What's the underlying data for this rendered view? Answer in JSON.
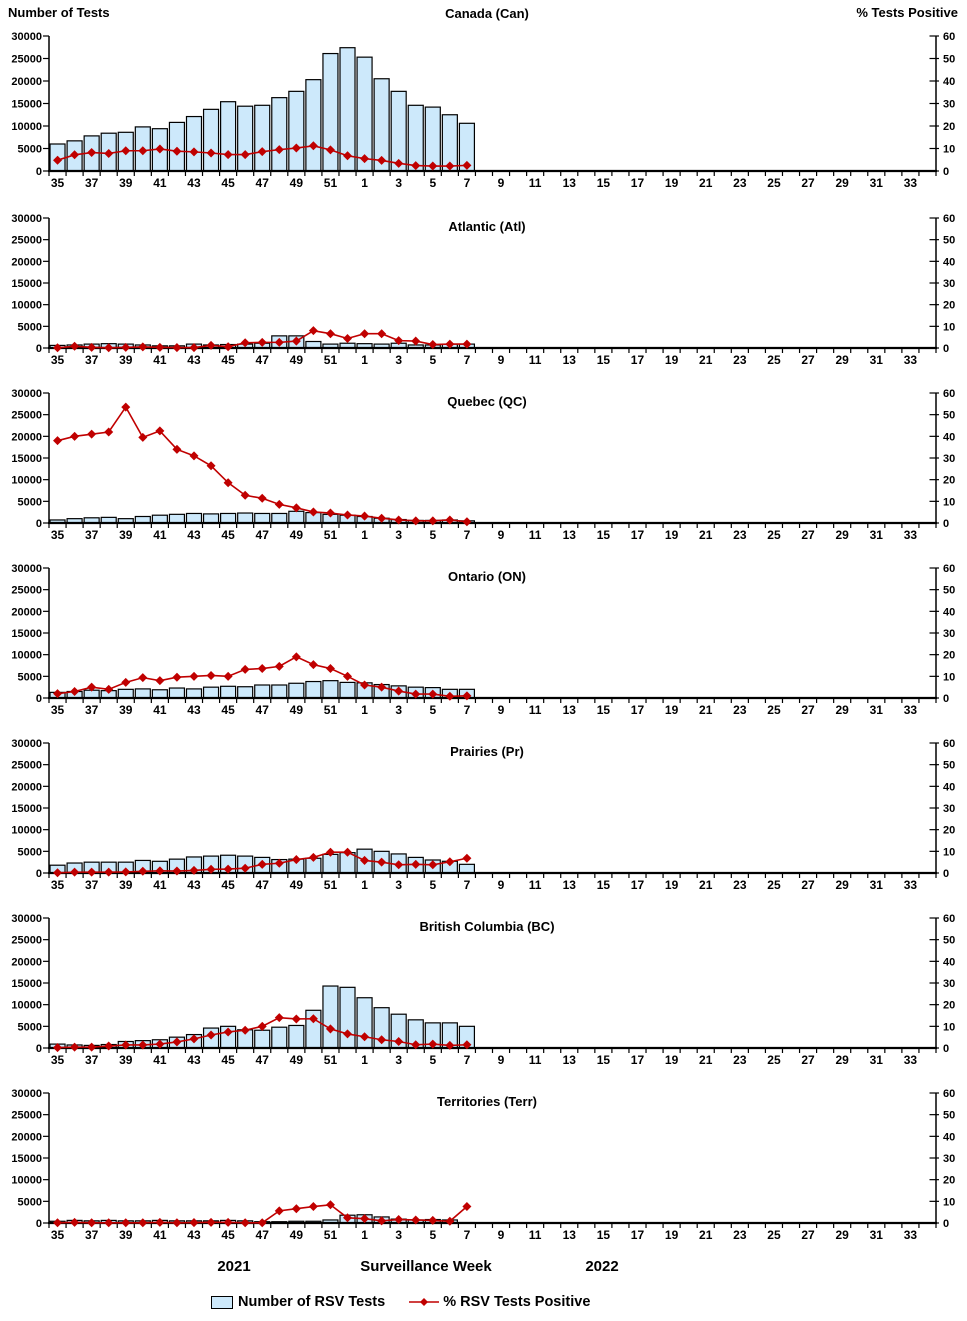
{
  "header": {
    "left_axis_title": "Number of Tests",
    "right_axis_title": "%  Tests Positive"
  },
  "footer": {
    "year_left": "2021",
    "xlabel": "Surveillance Week",
    "year_right": "2022"
  },
  "legend": {
    "bar_label": "Number of RSV Tests",
    "line_label": "% RSV Tests Positive"
  },
  "colors": {
    "bar_fill": "#CDE9FB",
    "bar_stroke": "#000000",
    "line": "#C00000",
    "marker": "#C00000",
    "axis": "#000000"
  },
  "chart_data": {
    "type": "combo-bar-line",
    "x_title": "Surveillance Week",
    "categories_weeks": [
      "35",
      "36",
      "37",
      "38",
      "39",
      "40",
      "41",
      "42",
      "43",
      "44",
      "45",
      "46",
      "47",
      "48",
      "49",
      "50",
      "51",
      "52",
      "1",
      "2",
      "3",
      "4",
      "5",
      "6",
      "7",
      "8",
      "9",
      "10",
      "11",
      "12",
      "13",
      "14",
      "15",
      "16",
      "17",
      "18",
      "19",
      "20",
      "21",
      "22",
      "23",
      "24",
      "25",
      "26",
      "27",
      "28",
      "29",
      "30",
      "31",
      "32",
      "33",
      "34"
    ],
    "x_axis_labeled_ticks": [
      "35",
      "37",
      "39",
      "41",
      "43",
      "45",
      "47",
      "49",
      "51",
      "1",
      "3",
      "5",
      "7",
      "9",
      "11",
      "13",
      "15",
      "17",
      "19",
      "21",
      "23",
      "25",
      "27",
      "29",
      "31",
      "33"
    ],
    "y_left": {
      "title": "Number of Tests",
      "min": 0,
      "max": 30000,
      "step": 5000
    },
    "y_right": {
      "title": "% Tests Positive",
      "min": 0,
      "max": 60,
      "step": 10
    },
    "legend_position": "bottom",
    "grid": false,
    "panels": [
      {
        "title": "Canada (Can)",
        "tests": [
          6000,
          6700,
          7800,
          8400,
          8600,
          9800,
          9400,
          10800,
          12100,
          13700,
          15400,
          14400,
          14600,
          16300,
          17700,
          20300,
          26100,
          27400,
          25300,
          20500,
          17700,
          14600,
          14200,
          12500,
          10600
        ],
        "pct_positive": [
          4.8,
          7.2,
          8.2,
          7.8,
          9.0,
          9.0,
          9.8,
          8.8,
          8.5,
          8.0,
          7.3,
          7.3,
          8.6,
          9.5,
          10.2,
          11.2,
          9.4,
          6.8,
          5.5,
          4.7,
          3.4,
          2.4,
          2.2,
          2.2,
          2.5
        ]
      },
      {
        "title": "Atlantic (Atl)",
        "tests": [
          600,
          700,
          900,
          1000,
          900,
          700,
          500,
          500,
          900,
          700,
          800,
          900,
          1100,
          2800,
          2800,
          1500,
          900,
          1100,
          1000,
          900,
          1100,
          700,
          700,
          900,
          900
        ],
        "pct_positive": [
          0.1,
          0.8,
          0.3,
          0.1,
          0.3,
          0.5,
          0.3,
          0.2,
          0.2,
          1.2,
          0.6,
          2.4,
          2.6,
          2.6,
          3.2,
          8.0,
          6.6,
          4.4,
          6.6,
          6.6,
          3.4,
          3.2,
          1.6,
          1.8,
          1.8
        ]
      },
      {
        "title": "Quebec (QC)",
        "tests": [
          700,
          1000,
          1200,
          1300,
          1000,
          1500,
          1800,
          2000,
          2200,
          2100,
          2200,
          2300,
          2200,
          2200,
          2700,
          2400,
          2000,
          1800,
          1500,
          1100,
          800,
          600,
          600,
          700,
          500
        ],
        "pct_positive": [
          38,
          40,
          41,
          42,
          53.5,
          39.5,
          42.5,
          34,
          31,
          26.4,
          18.6,
          12.8,
          11.4,
          8.6,
          7.0,
          5.1,
          4.6,
          3.7,
          3.2,
          2.2,
          1.4,
          1.0,
          1.0,
          1.4,
          0.6
        ]
      },
      {
        "title": "Ontario (ON)",
        "tests": [
          1300,
          1500,
          1800,
          1700,
          2000,
          2100,
          1900,
          2300,
          2100,
          2500,
          2700,
          2600,
          3000,
          3000,
          3400,
          3800,
          4000,
          3600,
          3500,
          3100,
          2800,
          2500,
          2400,
          2000,
          2000
        ],
        "pct_positive": [
          2.0,
          3.0,
          5.0,
          4.0,
          7.2,
          9.4,
          8.0,
          9.6,
          10.0,
          10.4,
          10.0,
          13.2,
          13.6,
          14.6,
          19.0,
          15.4,
          13.6,
          10.0,
          6.0,
          5.0,
          3.2,
          1.8,
          1.8,
          0.8,
          1.0
        ]
      },
      {
        "title": "Prairies (Pr)",
        "tests": [
          1800,
          2300,
          2500,
          2500,
          2500,
          2900,
          2700,
          3200,
          3700,
          3900,
          4100,
          3900,
          3600,
          3100,
          3200,
          3400,
          4300,
          4700,
          5500,
          5000,
          4400,
          3600,
          3000,
          2700,
          2000
        ],
        "pct_positive": [
          0.1,
          0.4,
          0.4,
          0.4,
          0.5,
          0.8,
          1.0,
          0.9,
          1.2,
          1.7,
          1.8,
          2.2,
          4.0,
          4.5,
          6.2,
          7.2,
          9.6,
          9.6,
          5.8,
          5.0,
          3.8,
          4.0,
          3.8,
          5.2,
          6.8
        ]
      },
      {
        "title": "British Columbia (BC)",
        "tests": [
          900,
          700,
          600,
          800,
          1500,
          1700,
          1900,
          2500,
          3100,
          4600,
          5000,
          4200,
          4100,
          4800,
          5200,
          8700,
          14300,
          14000,
          11600,
          9300,
          7800,
          6500,
          5800,
          5800,
          5000
        ],
        "pct_positive": [
          0.2,
          0.4,
          0.4,
          0.9,
          1.4,
          1.4,
          1.8,
          2.8,
          4.2,
          6.0,
          7.4,
          8.2,
          10.0,
          14.0,
          13.4,
          13.5,
          8.8,
          6.5,
          5.2,
          3.8,
          3.0,
          1.5,
          1.8,
          1.2,
          1.5
        ]
      },
      {
        "title": "Territories (Terr)",
        "tests": [
          400,
          600,
          500,
          600,
          500,
          500,
          600,
          500,
          500,
          500,
          600,
          500,
          300,
          300,
          400,
          400,
          700,
          1800,
          1900,
          1400,
          900,
          700,
          800,
          700,
          100
        ],
        "pct_positive": [
          0.1,
          0.3,
          0.1,
          0.1,
          0.1,
          0.1,
          0.3,
          0.1,
          0.2,
          0.3,
          0.3,
          0.1,
          0.1,
          5.6,
          6.6,
          7.6,
          8.4,
          2.4,
          2.0,
          1.0,
          1.6,
          1.4,
          1.2,
          0.8,
          7.6
        ]
      }
    ]
  }
}
